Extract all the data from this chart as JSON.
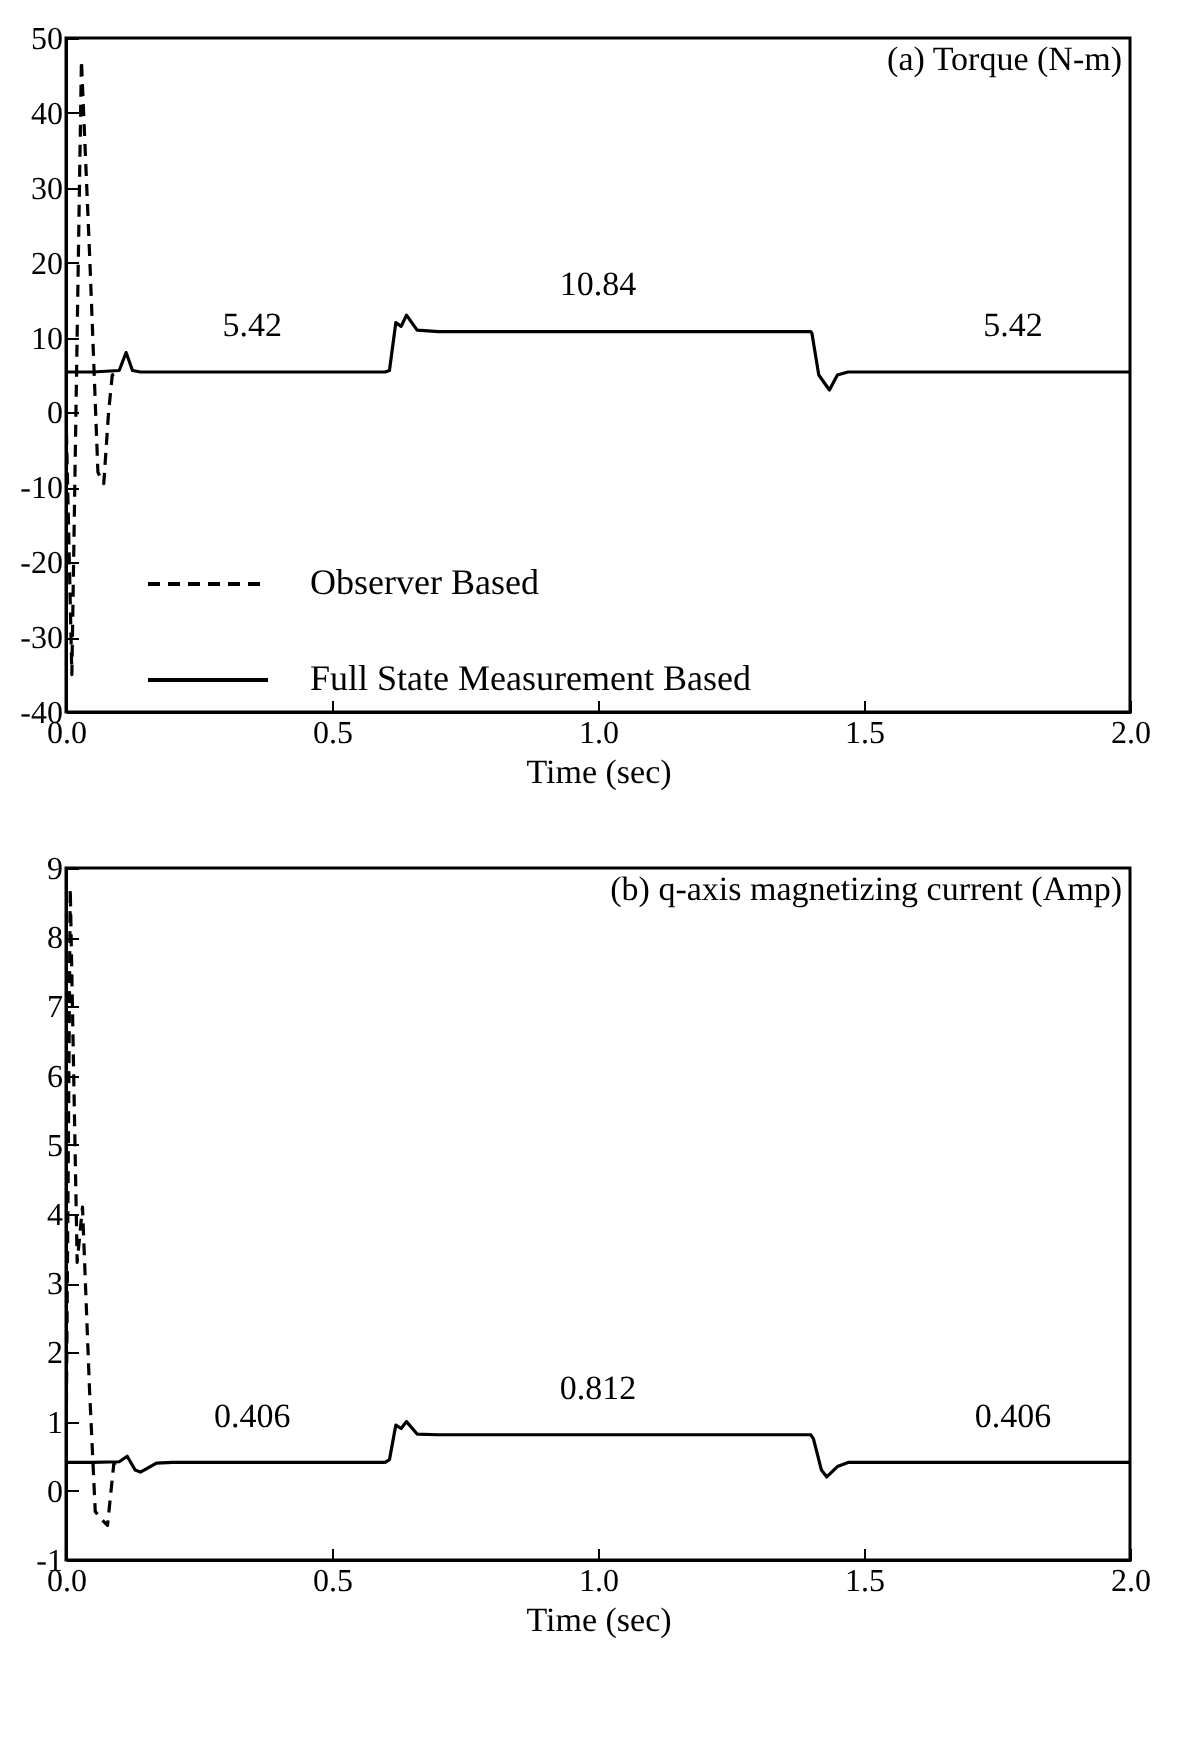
{
  "chart_data": [
    {
      "type": "line",
      "title": "(a) Torque (N-m)",
      "xlabel": "Time (sec)",
      "xlim": [
        0,
        2
      ],
      "xticks": [
        {
          "value": 0,
          "label": "0.0"
        },
        {
          "value": 0.5,
          "label": "0.5"
        },
        {
          "value": 1,
          "label": "1.0"
        },
        {
          "value": 1.5,
          "label": "1.5"
        },
        {
          "value": 2,
          "label": "2.0"
        }
      ],
      "ylim": [
        -40,
        50
      ],
      "yticks": [
        -40,
        -30,
        -20,
        -10,
        0,
        10,
        20,
        30,
        40,
        50
      ],
      "legend": "bottom left",
      "series": [
        {
          "name": "Observer Based",
          "color": "#000000",
          "line_style": "dashed",
          "x": [
            0,
            0.011,
            0.029,
            0.045,
            0.06,
            0.071,
            0.08,
            0.087,
            0.1
          ],
          "values": [
            0,
            -35,
            47,
            20,
            -8,
            -9.5,
            0,
            5,
            5.4
          ]
        },
        {
          "name": "Full State Measurement Based",
          "color": "#000000",
          "line_style": "solid",
          "x": [
            0,
            0.05,
            0.1,
            0.113,
            0.125,
            0.14,
            0.2,
            0.3,
            0.4,
            0.5,
            0.6,
            0.608,
            0.62,
            0.63,
            0.64,
            0.66,
            0.7,
            0.8,
            0.9,
            1.0,
            1.1,
            1.2,
            1.3,
            1.4,
            1.402,
            1.415,
            1.435,
            1.45,
            1.47,
            1.6,
            1.7,
            1.8,
            1.9,
            2.0
          ],
          "values": [
            5.4,
            5.4,
            5.6,
            8,
            5.6,
            5.4,
            5.4,
            5.4,
            5.4,
            5.4,
            5.4,
            5.6,
            12,
            11.5,
            13,
            11,
            10.8,
            10.8,
            10.8,
            10.8,
            10.8,
            10.8,
            10.8,
            10.8,
            10.6,
            5,
            3,
            5,
            5.4,
            5.4,
            5.4,
            5.4,
            5.4,
            5.4
          ]
        }
      ],
      "annotations": [
        {
          "text": "5.42",
          "x": 0.35,
          "y": 5.42
        },
        {
          "text": "10.84",
          "x": 1.0,
          "y": 10.84
        },
        {
          "text": "5.42",
          "x": 1.78,
          "y": 5.42
        }
      ]
    },
    {
      "type": "line",
      "title": "(b) q-axis magnetizing current (Amp)",
      "xlabel": "Time (sec)",
      "xlim": [
        0,
        2
      ],
      "xticks": [
        {
          "value": 0,
          "label": "0.0"
        },
        {
          "value": 0.5,
          "label": "0.5"
        },
        {
          "value": 1,
          "label": "1.0"
        },
        {
          "value": 1.5,
          "label": "1.5"
        },
        {
          "value": 2,
          "label": "2.0"
        }
      ],
      "ylim": [
        -1,
        9
      ],
      "yticks": [
        -1,
        0,
        1,
        2,
        3,
        4,
        5,
        6,
        7,
        8,
        9
      ],
      "legend": "left",
      "series": [
        {
          "name": "Observer Based",
          "color": "#000000",
          "line_style": "dashed",
          "x": [
            0,
            0.008,
            0.021,
            0.031,
            0.044,
            0.055,
            0.065,
            0.078,
            0.09,
            0.1
          ],
          "values": [
            0.4,
            8.7,
            3.3,
            4.1,
            1.5,
            -0.3,
            -0.4,
            -0.5,
            0.4,
            0.4
          ]
        },
        {
          "name": "Full State Measurement Based",
          "color": "#000000",
          "line_style": "solid",
          "x": [
            0,
            0.05,
            0.1,
            0.115,
            0.13,
            0.14,
            0.17,
            0.2,
            0.3,
            0.4,
            0.5,
            0.6,
            0.608,
            0.62,
            0.63,
            0.64,
            0.66,
            0.7,
            0.8,
            0.9,
            1.0,
            1.1,
            1.2,
            1.3,
            1.4,
            1.405,
            1.42,
            1.43,
            1.45,
            1.47,
            1.6,
            1.7,
            1.8,
            1.9,
            2.0
          ],
          "values": [
            0.41,
            0.41,
            0.42,
            0.5,
            0.3,
            0.27,
            0.4,
            0.41,
            0.41,
            0.41,
            0.41,
            0.41,
            0.45,
            0.95,
            0.9,
            1.0,
            0.82,
            0.81,
            0.81,
            0.81,
            0.81,
            0.81,
            0.81,
            0.81,
            0.81,
            0.75,
            0.3,
            0.2,
            0.35,
            0.41,
            0.41,
            0.41,
            0.41,
            0.41,
            0.41
          ]
        }
      ],
      "annotations": [
        {
          "text": "0.406",
          "x": 0.35,
          "y": 0.406
        },
        {
          "text": "0.812",
          "x": 1.0,
          "y": 0.812
        },
        {
          "text": "0.406",
          "x": 1.78,
          "y": 0.406
        }
      ]
    }
  ]
}
